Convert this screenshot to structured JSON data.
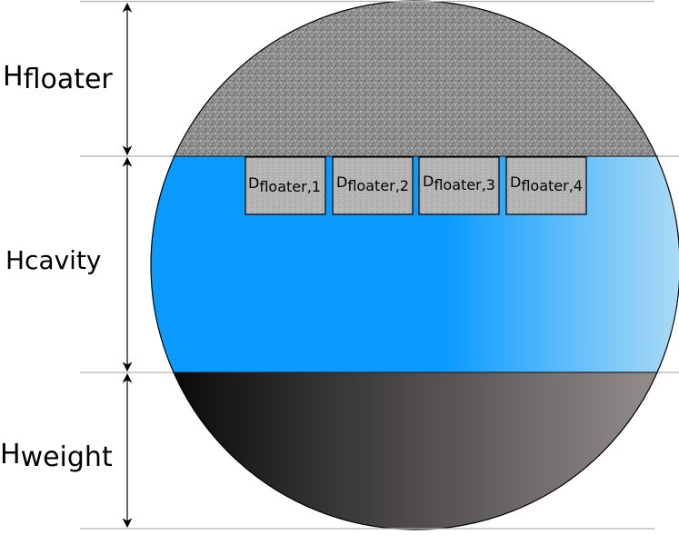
{
  "labels": {
    "h_floater": {
      "main": "H",
      "sub": "floater"
    },
    "h_cavity": {
      "main": "Hcavity",
      "sub": ""
    },
    "h_weight": {
      "main": "H",
      "sub": "weight"
    }
  },
  "floaters": [
    {
      "main": "D",
      "sub": "floater,1"
    },
    {
      "main": "D",
      "sub": "floater,2"
    },
    {
      "main": "D",
      "sub": "floater,3"
    },
    {
      "main": "D",
      "sub": "floater,4"
    }
  ],
  "colors": {
    "floater_fill": "#8f8f8f",
    "cavity_blue": "#0b9bff",
    "cavity_light": "#b9e0f5",
    "weight_dark": "#000000",
    "weight_light": "#a09898",
    "floater_block": "#b4b4b4",
    "guide_line": "#b0b0b0"
  }
}
